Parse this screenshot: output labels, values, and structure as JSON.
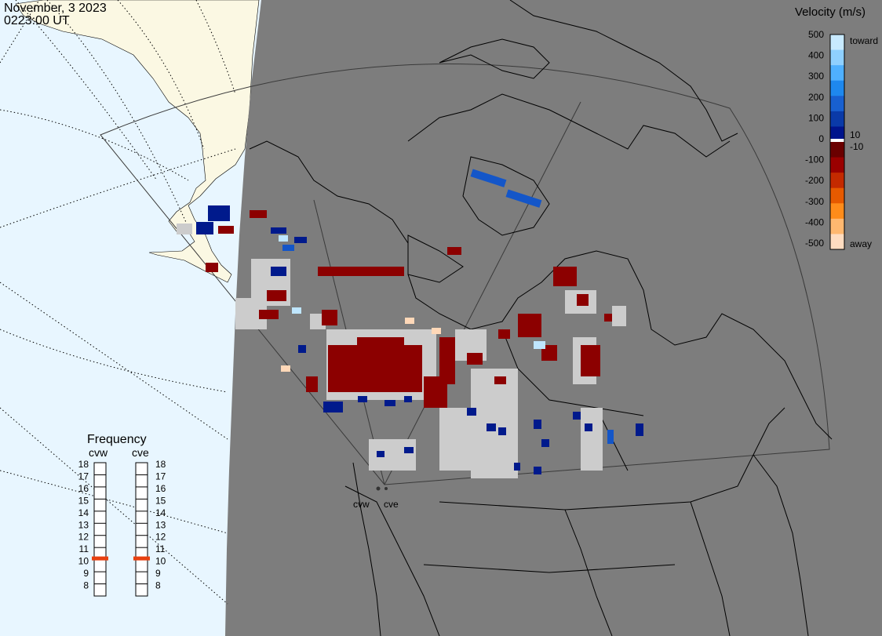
{
  "header": {
    "date": "November, 3 2023",
    "time": "0223:00 UT"
  },
  "colors": {
    "ocean": "#e8f6ff",
    "night": "#7d7d7d",
    "land_day": "#fbf8e3",
    "gray_scatter": "#cccccc",
    "dark_red": "#8c0000",
    "dark_blue": "#001a8c",
    "mid_blue": "#1456c8",
    "light_blue": "#bfe6ff",
    "light_orange": "#ffd8b8"
  },
  "legend": {
    "title": "Velocity (m/s)",
    "ticks": [
      "500",
      "400",
      "300",
      "200",
      "100",
      "0",
      "-100",
      "-200",
      "-300",
      "-400",
      "-500"
    ],
    "inner_labels": [
      "10",
      "-10"
    ],
    "toward_label": "toward",
    "away_label": "away",
    "colors": [
      "#c8eaff",
      "#8fd0ff",
      "#4fb0ff",
      "#1e88ee",
      "#1860d0",
      "#0a3aa8",
      "#00148c",
      "#6a0000",
      "#9a0000",
      "#c42a00",
      "#e65a00",
      "#ff8c1a",
      "#ffb870",
      "#ffdcc0"
    ]
  },
  "frequency": {
    "title": "Frequency",
    "radars": [
      {
        "name": "cvw",
        "value_mhz": 10.6
      },
      {
        "name": "cve",
        "value_mhz": 10.6
      }
    ],
    "scale": [
      "18",
      "17",
      "16",
      "15",
      "14",
      "13",
      "12",
      "11",
      "10",
      "9",
      "8"
    ],
    "indicator_color": "#e84010"
  },
  "map": {
    "site_labels": [
      "cvw",
      "cve"
    ]
  }
}
